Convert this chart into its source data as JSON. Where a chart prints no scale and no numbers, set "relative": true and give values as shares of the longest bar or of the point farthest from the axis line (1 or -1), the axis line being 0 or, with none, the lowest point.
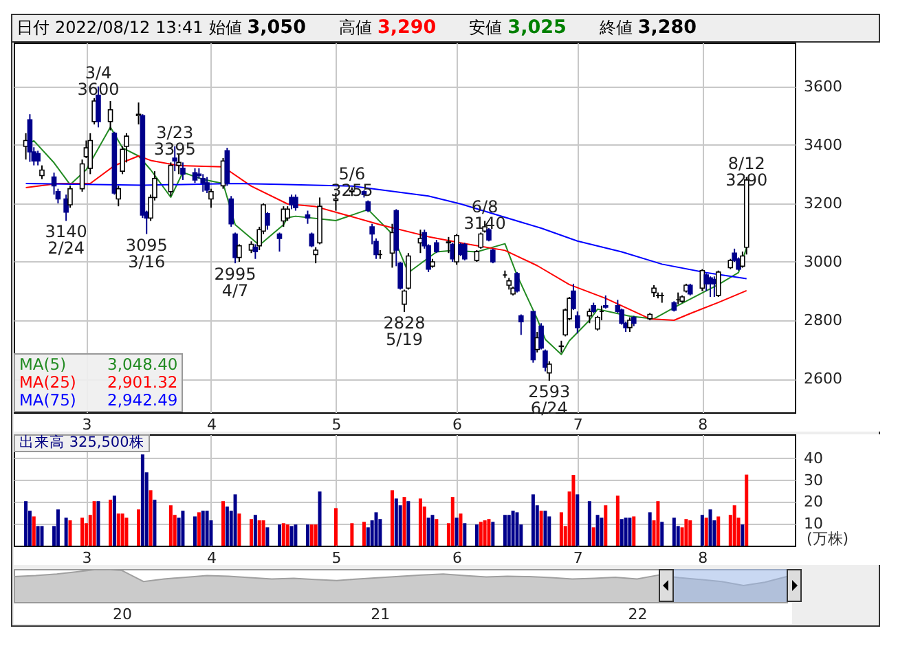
{
  "chart_data": [
    {
      "type": "candlestick",
      "title": "日付 2022/08/12 13:41 始値 3,050 高値 3,290 安値 3,025 終値 3,280",
      "x": [
        "2022-02-14",
        "2022-02-15",
        "2022-02-16",
        "2022-02-17",
        "2022-02-18",
        "2022-02-21",
        "2022-02-22",
        "2022-02-24",
        "2022-02-25",
        "2022-02-28",
        "2022-03-01",
        "2022-03-02",
        "2022-03-03",
        "2022-03-04",
        "2022-03-07",
        "2022-03-08",
        "2022-03-09",
        "2022-03-10",
        "2022-03-11",
        "2022-03-14",
        "2022-03-15",
        "2022-03-16",
        "2022-03-17",
        "2022-03-18",
        "2022-03-22",
        "2022-03-23",
        "2022-03-24",
        "2022-03-25",
        "2022-03-28",
        "2022-03-29",
        "2022-03-30",
        "2022-03-31",
        "2022-04-01",
        "2022-04-04",
        "2022-04-05",
        "2022-04-06",
        "2022-04-07",
        "2022-04-08",
        "2022-04-11",
        "2022-04-12",
        "2022-04-13",
        "2022-04-14",
        "2022-04-15",
        "2022-04-18",
        "2022-04-19",
        "2022-04-20",
        "2022-04-21",
        "2022-04-22",
        "2022-04-25",
        "2022-04-26",
        "2022-04-27",
        "2022-04-28",
        "2022-05-02",
        "2022-05-06",
        "2022-05-09",
        "2022-05-10",
        "2022-05-11",
        "2022-05-12",
        "2022-05-13",
        "2022-05-16",
        "2022-05-17",
        "2022-05-18",
        "2022-05-19",
        "2022-05-20",
        "2022-05-23",
        "2022-05-24",
        "2022-05-25",
        "2022-05-26",
        "2022-05-27",
        "2022-05-30",
        "2022-05-31",
        "2022-06-01",
        "2022-06-02",
        "2022-06-03",
        "2022-06-06",
        "2022-06-07",
        "2022-06-08",
        "2022-06-09",
        "2022-06-10",
        "2022-06-13",
        "2022-06-14",
        "2022-06-15",
        "2022-06-16",
        "2022-06-17",
        "2022-06-20",
        "2022-06-21",
        "2022-06-22",
        "2022-06-23",
        "2022-06-24",
        "2022-06-27",
        "2022-06-28",
        "2022-06-29",
        "2022-06-30",
        "2022-07-01",
        "2022-07-04",
        "2022-07-05",
        "2022-07-06",
        "2022-07-07",
        "2022-07-08",
        "2022-07-11",
        "2022-07-12",
        "2022-07-13",
        "2022-07-14",
        "2022-07-15",
        "2022-07-19",
        "2022-07-20",
        "2022-07-21",
        "2022-07-22",
        "2022-07-25",
        "2022-07-26",
        "2022-07-27",
        "2022-07-28",
        "2022-07-29",
        "2022-08-01",
        "2022-08-02",
        "2022-08-03",
        "2022-08-04",
        "2022-08-05",
        "2022-08-08",
        "2022-08-09",
        "2022-08-10",
        "2022-08-11",
        "2022-08-12"
      ],
      "ohlc": [
        [
          3395,
          3440,
          3350,
          3415
        ],
        [
          3486,
          3505,
          3342,
          3376
        ],
        [
          3376,
          3392,
          3330,
          3345
        ],
        [
          3370,
          3380,
          3330,
          3345
        ],
        [
          3295,
          3330,
          3283,
          3314
        ],
        [
          3290,
          3305,
          3230,
          3260
        ],
        [
          3240,
          3250,
          3200,
          3215
        ],
        [
          3215,
          3230,
          3140,
          3170
        ],
        [
          3195,
          3260,
          3185,
          3250
        ],
        [
          3250,
          3350,
          3240,
          3335
        ],
        [
          3360,
          3415,
          3355,
          3390
        ],
        [
          3320,
          3440,
          3300,
          3415
        ],
        [
          3480,
          3560,
          3470,
          3550
        ],
        [
          3570,
          3600,
          3460,
          3480
        ],
        [
          3480,
          3550,
          3450,
          3520
        ],
        [
          3440,
          3445,
          3230,
          3235
        ],
        [
          3215,
          3260,
          3190,
          3250
        ],
        [
          3310,
          3395,
          3300,
          3385
        ],
        [
          3395,
          3440,
          3340,
          3430
        ],
        [
          3500,
          3545,
          3470,
          3505
        ],
        [
          3500,
          3505,
          3150,
          3160
        ],
        [
          3170,
          3175,
          3095,
          3150
        ],
        [
          3150,
          3230,
          3140,
          3220
        ],
        [
          3220,
          3310,
          3210,
          3285
        ],
        [
          3240,
          3340,
          3225,
          3330
        ],
        [
          3355,
          3395,
          3310,
          3345
        ],
        [
          3330,
          3370,
          3300,
          3340
        ],
        [
          3320,
          3340,
          3280,
          3300
        ],
        [
          3305,
          3320,
          3270,
          3280
        ],
        [
          3300,
          3320,
          3285,
          3295
        ],
        [
          3285,
          3300,
          3240,
          3270
        ],
        [
          3270,
          3290,
          3235,
          3245
        ],
        [
          3215,
          3250,
          3185,
          3240
        ],
        [
          3260,
          3355,
          3250,
          3345
        ],
        [
          3380,
          3390,
          3260,
          3270
        ],
        [
          3215,
          3225,
          3120,
          3130
        ],
        [
          3095,
          3100,
          2995,
          3015
        ],
        [
          3015,
          3060,
          3000,
          3055
        ],
        [
          3040,
          3070,
          3030,
          3060
        ],
        [
          3050,
          3060,
          3010,
          3035
        ],
        [
          3055,
          3120,
          3040,
          3110
        ],
        [
          3105,
          3200,
          3095,
          3195
        ],
        [
          3165,
          3170,
          3110,
          3125
        ],
        [
          3095,
          3100,
          3035,
          3080
        ],
        [
          3140,
          3190,
          3120,
          3180
        ],
        [
          3150,
          3190,
          3140,
          3180
        ],
        [
          3220,
          3230,
          3180,
          3195
        ],
        [
          3220,
          3230,
          3175,
          3185
        ],
        [
          3160,
          3175,
          3130,
          3150
        ],
        [
          3095,
          3100,
          3050,
          3055
        ],
        [
          3025,
          3050,
          2995,
          3040
        ],
        [
          3065,
          3220,
          3060,
          3190
        ],
        [
          3210,
          3235,
          3175,
          3215
        ],
        [
          3240,
          3255,
          3225,
          3245
        ],
        [
          3240,
          3245,
          3220,
          3230
        ],
        [
          3205,
          3210,
          3170,
          3175
        ],
        [
          3120,
          3130,
          3060,
          3095
        ],
        [
          3070,
          3080,
          3010,
          3025
        ],
        [
          3025,
          3040,
          3010,
          3025
        ],
        [
          3030,
          3130,
          2980,
          3100
        ],
        [
          3175,
          3180,
          2985,
          3040
        ],
        [
          2995,
          3000,
          2905,
          2910
        ],
        [
          2855,
          2905,
          2828,
          2900
        ],
        [
          2910,
          3030,
          2905,
          3020
        ],
        [
          3065,
          3110,
          3030,
          3080
        ],
        [
          3100,
          3110,
          3045,
          3055
        ],
        [
          3055,
          3060,
          2965,
          2975
        ],
        [
          2985,
          3010,
          2980,
          3000
        ],
        [
          3065,
          3075,
          3030,
          3035
        ],
        [
          3065,
          3085,
          3030,
          3068
        ],
        [
          3060,
          3065,
          3000,
          3010
        ],
        [
          3000,
          3095,
          2990,
          3090
        ],
        [
          3060,
          3065,
          3020,
          3025
        ],
        [
          3060,
          3065,
          3005,
          3010
        ],
        [
          3005,
          3040,
          3000,
          3035
        ],
        [
          3050,
          3100,
          3045,
          3095
        ],
        [
          3105,
          3140,
          3100,
          3120
        ],
        [
          3110,
          3115,
          3070,
          3075
        ],
        [
          3040,
          3045,
          2995,
          3000
        ],
        [
          2955,
          2970,
          2945,
          2955
        ],
        [
          2920,
          2945,
          2905,
          2935
        ],
        [
          2890,
          2915,
          2885,
          2910
        ],
        [
          2960,
          2965,
          2895,
          2900
        ],
        [
          2815,
          2820,
          2750,
          2795
        ],
        [
          2830,
          2830,
          2655,
          2665
        ],
        [
          2700,
          2760,
          2690,
          2740
        ],
        [
          2780,
          2790,
          2700,
          2705
        ],
        [
          2695,
          2700,
          2625,
          2640
        ],
        [
          2620,
          2660,
          2593,
          2650
        ],
        [
          2710,
          2730,
          2690,
          2712
        ],
        [
          2750,
          2840,
          2745,
          2835
        ],
        [
          2805,
          2880,
          2800,
          2875
        ],
        [
          2900,
          2925,
          2835,
          2840
        ],
        [
          2815,
          2830,
          2755,
          2775
        ],
        [
          2815,
          2840,
          2790,
          2830
        ],
        [
          2850,
          2860,
          2825,
          2830
        ],
        [
          2770,
          2815,
          2765,
          2810
        ],
        [
          2830,
          2850,
          2800,
          2830
        ],
        [
          2850,
          2885,
          2840,
          2845
        ],
        [
          2850,
          2870,
          2825,
          2830
        ],
        [
          2835,
          2840,
          2785,
          2790
        ],
        [
          2790,
          2795,
          2760,
          2775
        ],
        [
          2775,
          2810,
          2760,
          2800
        ],
        [
          2810,
          2815,
          2780,
          2790
        ],
        [
          2805,
          2825,
          2800,
          2820
        ],
        [
          2895,
          2920,
          2880,
          2910
        ],
        [
          2885,
          2895,
          2875,
          2885
        ],
        [
          2885,
          2895,
          2860,
          2885
        ],
        [
          2860,
          2865,
          2830,
          2835
        ],
        [
          2870,
          2895,
          2855,
          2870
        ],
        [
          2865,
          2885,
          2860,
          2880
        ],
        [
          2900,
          2925,
          2895,
          2920
        ],
        [
          2920,
          2925,
          2885,
          2890
        ],
        [
          2910,
          2975,
          2900,
          2970
        ],
        [
          2955,
          2960,
          2900,
          2925
        ],
        [
          2945,
          2950,
          2880,
          2925
        ],
        [
          2940,
          2950,
          2880,
          2925
        ],
        [
          2885,
          2970,
          2880,
          2965
        ],
        [
          2980,
          3010,
          2975,
          3005
        ],
        [
          3030,
          3045,
          3000,
          3005
        ],
        [
          3010,
          3015,
          2970,
          2975
        ],
        [
          2985,
          3035,
          2980,
          3020
        ],
        [
          3050,
          3290,
          3025,
          3280
        ]
      ],
      "series": [
        {
          "name": "MA(5)",
          "type": "line",
          "color": "#228b22",
          "x": [
            "2022-02-14",
            "2022-02-16",
            "2022-02-21",
            "2022-02-25",
            "2022-03-01",
            "2022-03-07",
            "2022-03-10",
            "2022-03-14",
            "2022-03-17",
            "2022-03-22",
            "2022-03-25",
            "2022-03-30",
            "2022-04-04",
            "2022-04-07",
            "2022-04-13",
            "2022-04-19",
            "2022-04-20",
            "2022-04-22",
            "2022-05-02",
            "2022-05-10",
            "2022-05-16",
            "2022-05-20",
            "2022-05-27",
            "2022-05-31",
            "2022-06-06",
            "2022-06-13",
            "2022-06-16",
            "2022-06-21",
            "2022-06-23",
            "2022-06-27",
            "2022-06-29",
            "2022-07-04",
            "2022-07-06",
            "2022-07-11",
            "2022-07-14",
            "2022-07-20",
            "2022-07-26",
            "2022-08-01",
            "2022-08-05",
            "2022-08-10",
            "2022-08-12"
          ],
          "values": [
            3400,
            3414,
            3339,
            3264,
            3315,
            3461,
            3390,
            3362,
            3315,
            3221,
            3306,
            3282,
            3268,
            3127,
            3057,
            3127,
            3151,
            3156,
            3141,
            3179,
            3095,
            2963,
            3034,
            3039,
            3034,
            3062,
            2954,
            2805,
            2735,
            2683,
            2730,
            2800,
            2838,
            2823,
            2814,
            2805,
            2851,
            2894,
            2922,
            2963,
            3048.4
          ]
        },
        {
          "name": "MA(25)",
          "type": "line",
          "color": "#ff0000",
          "x": [
            "2022-02-14",
            "2022-02-22",
            "2022-03-02",
            "2022-03-08",
            "2022-03-14",
            "2022-03-17",
            "2022-03-24",
            "2022-04-04",
            "2022-04-11",
            "2022-04-20",
            "2022-04-27",
            "2022-05-13",
            "2022-05-25",
            "2022-06-03",
            "2022-06-13",
            "2022-06-21",
            "2022-06-29",
            "2022-07-08",
            "2022-07-19",
            "2022-07-25",
            "2022-07-29",
            "2022-08-05",
            "2022-08-12"
          ],
          "values": [
            3254,
            3268,
            3268,
            3329,
            3362,
            3347,
            3329,
            3325,
            3259,
            3198,
            3189,
            3127,
            3086,
            3062,
            3039,
            2987,
            2922,
            2875,
            2805,
            2800,
            2823,
            2861,
            2901.32
          ]
        },
        {
          "name": "MA(75)",
          "type": "line",
          "color": "#0000ff",
          "x": [
            "2022-02-14",
            "2022-03-15",
            "2022-04-07",
            "2022-04-18",
            "2022-05-06",
            "2022-05-25",
            "2022-06-02",
            "2022-06-22",
            "2022-07-01",
            "2022-07-12",
            "2022-07-22",
            "2022-08-02",
            "2022-08-12"
          ],
          "values": [
            3268,
            3262,
            3268,
            3265,
            3259,
            3225,
            3198,
            3115,
            3071,
            3034,
            2992,
            2963,
            2942.49
          ]
        }
      ],
      "annotations": [
        "3,048.40",
        "2,901.32",
        "2,942.49",
        {
          "text": "3140 2/24",
          "x": "2022-02-24",
          "y": 3140
        },
        {
          "text": "3/4 3600",
          "x": "2022-03-04",
          "y": 3600
        },
        {
          "text": "3095 3/16",
          "x": "2022-03-16",
          "y": 3095
        },
        {
          "text": "3/23 3395",
          "x": "2022-03-23",
          "y": 3395
        },
        {
          "text": "2995 4/7",
          "x": "2022-04-07",
          "y": 2995
        },
        {
          "text": "5/6 3255",
          "x": "2022-05-06",
          "y": 3255
        },
        {
          "text": "2828 5/19",
          "x": "2022-05-19",
          "y": 2828
        },
        {
          "text": "6/8 3140",
          "x": "2022-06-08",
          "y": 3140
        },
        {
          "text": "2593 6/24",
          "x": "2022-06-24",
          "y": 2593
        },
        {
          "text": "8/12 3290",
          "x": "2022-08-12",
          "y": 3290
        }
      ],
      "xlim": [
        "2022-02-11",
        "2022-08-24"
      ],
      "ylim": [
        2485,
        3750
      ],
      "xticks": [
        {
          "value": "2022-03-01",
          "label": "3"
        },
        {
          "value": "2022-04-01",
          "label": "4"
        },
        {
          "value": "2022-05-02",
          "label": "5"
        },
        {
          "value": "2022-06-01",
          "label": "6"
        },
        {
          "value": "2022-07-01",
          "label": "7"
        },
        {
          "value": "2022-08-01",
          "label": "8"
        }
      ],
      "yticks": [
        2600,
        2800,
        3000,
        3200,
        3400,
        3600
      ],
      "grid": true,
      "legend": "bottom left"
    },
    {
      "type": "bar",
      "ylabel": "(万株)",
      "annotations": [
        "出来高 325,500株"
      ],
      "x": [
        "2022-02-14",
        "2022-02-15",
        "2022-02-16",
        "2022-02-17",
        "2022-02-18",
        "2022-02-21",
        "2022-02-22",
        "2022-02-24",
        "2022-02-25",
        "2022-02-28",
        "2022-03-01",
        "2022-03-02",
        "2022-03-03",
        "2022-03-04",
        "2022-03-07",
        "2022-03-08",
        "2022-03-09",
        "2022-03-10",
        "2022-03-11",
        "2022-03-14",
        "2022-03-15",
        "2022-03-16",
        "2022-03-17",
        "2022-03-18",
        "2022-03-22",
        "2022-03-23",
        "2022-03-24",
        "2022-03-25",
        "2022-03-28",
        "2022-03-29",
        "2022-03-30",
        "2022-03-31",
        "2022-04-01",
        "2022-04-04",
        "2022-04-05",
        "2022-04-06",
        "2022-04-07",
        "2022-04-08",
        "2022-04-11",
        "2022-04-12",
        "2022-04-13",
        "2022-04-14",
        "2022-04-15",
        "2022-04-18",
        "2022-04-19",
        "2022-04-20",
        "2022-04-21",
        "2022-04-22",
        "2022-04-25",
        "2022-04-26",
        "2022-04-27",
        "2022-04-28",
        "2022-05-02",
        "2022-05-06",
        "2022-05-09",
        "2022-05-10",
        "2022-05-11",
        "2022-05-12",
        "2022-05-13",
        "2022-05-16",
        "2022-05-17",
        "2022-05-18",
        "2022-05-19",
        "2022-05-20",
        "2022-05-23",
        "2022-05-24",
        "2022-05-25",
        "2022-05-26",
        "2022-05-27",
        "2022-05-30",
        "2022-05-31",
        "2022-06-01",
        "2022-06-02",
        "2022-06-03",
        "2022-06-06",
        "2022-06-07",
        "2022-06-08",
        "2022-06-09",
        "2022-06-10",
        "2022-06-13",
        "2022-06-14",
        "2022-06-15",
        "2022-06-16",
        "2022-06-17",
        "2022-06-20",
        "2022-06-21",
        "2022-06-22",
        "2022-06-23",
        "2022-06-24",
        "2022-06-27",
        "2022-06-28",
        "2022-06-29",
        "2022-06-30",
        "2022-07-01",
        "2022-07-04",
        "2022-07-05",
        "2022-07-06",
        "2022-07-07",
        "2022-07-08",
        "2022-07-11",
        "2022-07-12",
        "2022-07-13",
        "2022-07-14",
        "2022-07-15",
        "2022-07-19",
        "2022-07-20",
        "2022-07-21",
        "2022-07-22",
        "2022-07-25",
        "2022-07-26",
        "2022-07-27",
        "2022-07-28",
        "2022-07-29",
        "2022-08-01",
        "2022-08-02",
        "2022-08-03",
        "2022-08-04",
        "2022-08-05",
        "2022-08-08",
        "2022-08-09",
        "2022-08-10",
        "2022-08-11",
        "2022-08-12"
      ],
      "values": [
        20.4,
        16.0,
        13.4,
        9.0,
        9.0,
        9.0,
        16.6,
        12.8,
        11.6,
        12.8,
        10.3,
        14.1,
        20.4,
        20.4,
        21.0,
        22.9,
        14.7,
        14.7,
        12.8,
        16.6,
        41.8,
        33.6,
        25.4,
        21.0,
        18.5,
        14.1,
        12.8,
        16.0,
        13.4,
        15.3,
        16.0,
        16.0,
        11.6,
        20.4,
        17.9,
        16.0,
        23.5,
        14.7,
        12.2,
        14.1,
        11.6,
        11.6,
        8.4,
        9.7,
        10.3,
        9.7,
        9.0,
        9.7,
        9.7,
        9.7,
        9.7,
        24.8,
        17.2,
        10.3,
        10.9,
        8.4,
        11.6,
        15.3,
        12.2,
        25.4,
        21.6,
        18.5,
        22.3,
        20.4,
        21.6,
        17.9,
        12.8,
        14.1,
        12.2,
        10.3,
        22.3,
        12.8,
        14.7,
        10.3,
        9.7,
        10.9,
        11.6,
        12.2,
        10.9,
        14.1,
        14.1,
        16.0,
        15.3,
        9.7,
        23.5,
        18.5,
        16.0,
        16.0,
        13.4,
        15.3,
        9.0,
        24.8,
        32.4,
        23.5,
        20.4,
        8.4,
        14.1,
        12.8,
        18.5,
        22.9,
        12.2,
        12.8,
        12.8,
        13.4,
        15.3,
        11.6,
        20.4,
        10.9,
        12.8,
        9.0,
        8.4,
        12.2,
        11.6,
        14.1,
        12.8,
        16.6,
        11.6,
        13.4,
        14.1,
        18.5,
        12.8,
        9.7,
        32.55
      ],
      "colors": [
        "#00008b",
        "#00008b",
        "#ff0000",
        "#00008b",
        "#00008b",
        "#00008b",
        "#00008b",
        "#00008b",
        "#ff0000",
        "#ff0000",
        "#ff0000",
        "#ff0000",
        "#ff0000",
        "#00008b",
        "#ff0000",
        "#00008b",
        "#ff0000",
        "#ff0000",
        "#ff0000",
        "#ff0000",
        "#00008b",
        "#00008b",
        "#ff0000",
        "#00008b",
        "#ff0000",
        "#ff0000",
        "#00008b",
        "#00008b",
        "#00008b",
        "#ff0000",
        "#00008b",
        "#00008b",
        "#00008b",
        "#ff0000",
        "#00008b",
        "#00008b",
        "#00008b",
        "#ff0000",
        "#ff0000",
        "#00008b",
        "#ff0000",
        "#ff0000",
        "#00008b",
        "#00008b",
        "#ff0000",
        "#ff0000",
        "#00008b",
        "#00008b",
        "#00008b",
        "#ff0000",
        "#ff0000",
        "#00008b",
        "#ff0000",
        "#ff0000",
        "#ff0000",
        "#00008b",
        "#00008b",
        "#00008b",
        "#00008b",
        "#ff0000",
        "#00008b",
        "#00008b",
        "#ff0000",
        "#00008b",
        "#ff0000",
        "#ff0000",
        "#00008b",
        "#00008b",
        "#ff0000",
        "#ff0000",
        "#ff0000",
        "#00008b",
        "#ff0000",
        "#00008b",
        "#00008b",
        "#ff0000",
        "#ff0000",
        "#ff0000",
        "#00008b",
        "#00008b",
        "#00008b",
        "#00008b",
        "#00008b",
        "#00008b",
        "#00008b",
        "#00008b",
        "#ff0000",
        "#00008b",
        "#00008b",
        "#ff0000",
        "#ff0000",
        "#ff0000",
        "#ff0000",
        "#00008b",
        "#00008b",
        "#ff0000",
        "#00008b",
        "#00008b",
        "#ff0000",
        "#ff0000",
        "#00008b",
        "#00008b",
        "#00008b",
        "#ff0000",
        "#00008b",
        "#ff0000",
        "#ff0000",
        "#00008b",
        "#00008b",
        "#00008b",
        "#ff0000",
        "#ff0000",
        "#ff0000",
        "#00008b",
        "#ff0000",
        "#00008b",
        "#00008b",
        "#ff0000",
        "#ff0000",
        "#ff0000",
        "#ff0000",
        "#00008b",
        "#ff0000"
      ],
      "xlim": [
        "2022-02-11",
        "2022-08-24"
      ],
      "ylim": [
        0,
        51
      ],
      "xticks": [
        {
          "value": "2022-03-01",
          "label": "3"
        },
        {
          "value": "2022-04-01",
          "label": "4"
        },
        {
          "value": "2022-05-02",
          "label": "5"
        },
        {
          "value": "2022-06-01",
          "label": "6"
        },
        {
          "value": "2022-07-01",
          "label": "7"
        },
        {
          "value": "2022-08-01",
          "label": "8"
        }
      ],
      "yticks": [
        10,
        20,
        30,
        40
      ],
      "grid": true
    },
    {
      "type": "area",
      "relative": true,
      "color": "#a0a0a0",
      "x": [
        "2019-08",
        "2019-09",
        "2019-10",
        "2019-11",
        "2019-12",
        "2020-01",
        "2020-02",
        "2020-03",
        "2020-04",
        "2020-05",
        "2020-06",
        "2020-07",
        "2020-08",
        "2020-09",
        "2020-10",
        "2020-11",
        "2020-12",
        "2021-01",
        "2021-02",
        "2021-03",
        "2021-04",
        "2021-05",
        "2021-06",
        "2021-07",
        "2021-08",
        "2021-09",
        "2021-10",
        "2021-11",
        "2021-12",
        "2022-01",
        "2022-02",
        "2022-03",
        "2022-04",
        "2022-05",
        "2022-06",
        "2022-07",
        "2022-08"
      ],
      "values": [
        0.77,
        0.8,
        0.85,
        0.92,
        1.0,
        0.96,
        0.62,
        0.7,
        0.75,
        0.8,
        0.78,
        0.74,
        0.7,
        0.72,
        0.68,
        0.65,
        0.7,
        0.74,
        0.78,
        0.82,
        0.85,
        0.8,
        0.76,
        0.78,
        0.77,
        0.74,
        0.7,
        0.72,
        0.75,
        0.7,
        0.82,
        0.74,
        0.68,
        0.62,
        0.5,
        0.6,
        0.77
      ],
      "xlim": [
        "2019-08",
        "2022-08"
      ],
      "xticks": [
        {
          "value": "2020-01",
          "label": "20"
        },
        {
          "value": "2021-01",
          "label": "21"
        },
        {
          "value": "2022-01",
          "label": "22"
        }
      ],
      "bands": [
        {
          "axis": "x",
          "from": "2022-02",
          "to": "2022-08",
          "color": "#9db8e8"
        }
      ]
    }
  ]
}
